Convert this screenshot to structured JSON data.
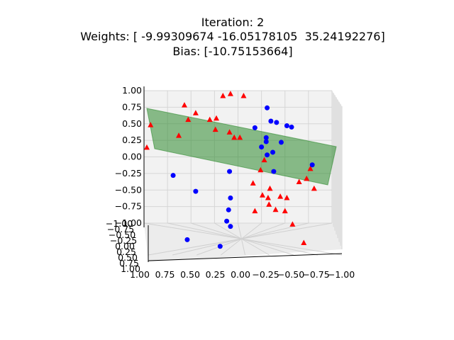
{
  "chart_data": {
    "type": "scatter",
    "projection": "3d",
    "title_lines": [
      "Iteration: 2",
      "Weights: [ -9.99309674 -16.05178105  35.24192276]",
      "Bias: [-10.75153664]"
    ],
    "xlabel": "",
    "ylabel": "",
    "zlabel": "",
    "x_tick_labels": [
      "1.00",
      "0.75",
      "0.50",
      "0.25",
      "0.00",
      "−0.25",
      "−0.50",
      "−0.75",
      "−1.00"
    ],
    "y_tick_labels": [
      "1.00",
      "0.75",
      "0.50",
      "0.25",
      "0.00",
      "−0.25",
      "−0.50",
      "−0.75",
      "−1.00"
    ],
    "z_tick_labels": [
      "1.00",
      "0.75",
      "0.50",
      "0.25",
      "0.00",
      "−0.25",
      "−0.50",
      "−0.75",
      "−1.00"
    ],
    "xlim": [
      -1,
      1
    ],
    "ylim": [
      -1,
      1
    ],
    "zlim": [
      -1,
      1
    ],
    "grid": true,
    "colors": {
      "class_a": "#ff0000",
      "class_b": "#0000ff",
      "plane": "#2e8b2e"
    },
    "plane": {
      "weights": [
        -9.99309674,
        -16.05178105,
        35.24192276
      ],
      "bias": -10.75153664
    },
    "series": [
      {
        "marker": "triangle",
        "color_key": "class_a",
        "points": [
          {
            "x": 0.57,
            "z": 0.78
          },
          {
            "x": 0.45,
            "z": 0.66
          },
          {
            "x": 0.3,
            "z": 0.56
          },
          {
            "x": 0.63,
            "z": 0.32
          },
          {
            "x": 0.53,
            "z": 0.56
          },
          {
            "x": 0.93,
            "z": 0.48
          },
          {
            "x": 0.97,
            "z": 0.14
          },
          {
            "x": 0.08,
            "z": 0.95
          },
          {
            "x": 0.16,
            "z": 0.92
          },
          {
            "x": -0.06,
            "z": 0.92
          },
          {
            "x": 0.23,
            "z": 0.58
          },
          {
            "x": 0.24,
            "z": 0.41
          },
          {
            "x": 0.04,
            "z": 0.29
          },
          {
            "x": 0.09,
            "z": 0.37
          },
          {
            "x": -0.02,
            "z": 0.29
          },
          {
            "x": -0.28,
            "z": -0.05
          },
          {
            "x": -0.24,
            "z": -0.2
          },
          {
            "x": -0.16,
            "z": -0.4
          },
          {
            "x": -0.34,
            "z": -0.48
          },
          {
            "x": -0.32,
            "z": -0.62
          },
          {
            "x": -0.33,
            "z": -0.72
          },
          {
            "x": -0.26,
            "z": -0.58
          },
          {
            "x": -0.18,
            "z": -0.82
          },
          {
            "x": -0.4,
            "z": -0.8
          },
          {
            "x": -0.45,
            "z": -0.6
          },
          {
            "x": -0.52,
            "z": -0.62
          },
          {
            "x": -0.65,
            "z": -0.38
          },
          {
            "x": -0.73,
            "z": -0.33
          },
          {
            "x": -0.77,
            "z": -0.18
          },
          {
            "x": -0.81,
            "z": -0.48
          },
          {
            "x": -0.5,
            "z": -0.82
          },
          {
            "x": -0.58,
            "z": -1.02
          },
          {
            "x": -0.7,
            "z": -1.3
          }
        ]
      },
      {
        "marker": "circle",
        "color_key": "class_b",
        "points": [
          {
            "x": -0.31,
            "z": 0.74
          },
          {
            "x": -0.35,
            "z": 0.54
          },
          {
            "x": -0.41,
            "z": 0.52
          },
          {
            "x": -0.52,
            "z": 0.47
          },
          {
            "x": -0.57,
            "z": 0.45
          },
          {
            "x": -0.18,
            "z": 0.44
          },
          {
            "x": -0.3,
            "z": 0.29
          },
          {
            "x": -0.46,
            "z": 0.22
          },
          {
            "x": -0.3,
            "z": 0.23
          },
          {
            "x": -0.25,
            "z": 0.15
          },
          {
            "x": -0.37,
            "z": 0.07
          },
          {
            "x": -0.79,
            "z": -0.12
          },
          {
            "x": -0.31,
            "z": 0.03
          },
          {
            "x": 0.09,
            "z": -0.22
          },
          {
            "x": -0.38,
            "z": -0.22
          },
          {
            "x": 0.08,
            "z": -0.62
          },
          {
            "x": 0.1,
            "z": -0.8
          },
          {
            "x": 0.12,
            "z": -0.97
          },
          {
            "x": 0.08,
            "z": -1.05
          },
          {
            "x": 0.45,
            "z": -0.52
          },
          {
            "x": 0.69,
            "z": -0.28
          },
          {
            "x": 0.54,
            "z": -1.25
          },
          {
            "x": 0.19,
            "z": -1.35
          }
        ]
      }
    ]
  }
}
